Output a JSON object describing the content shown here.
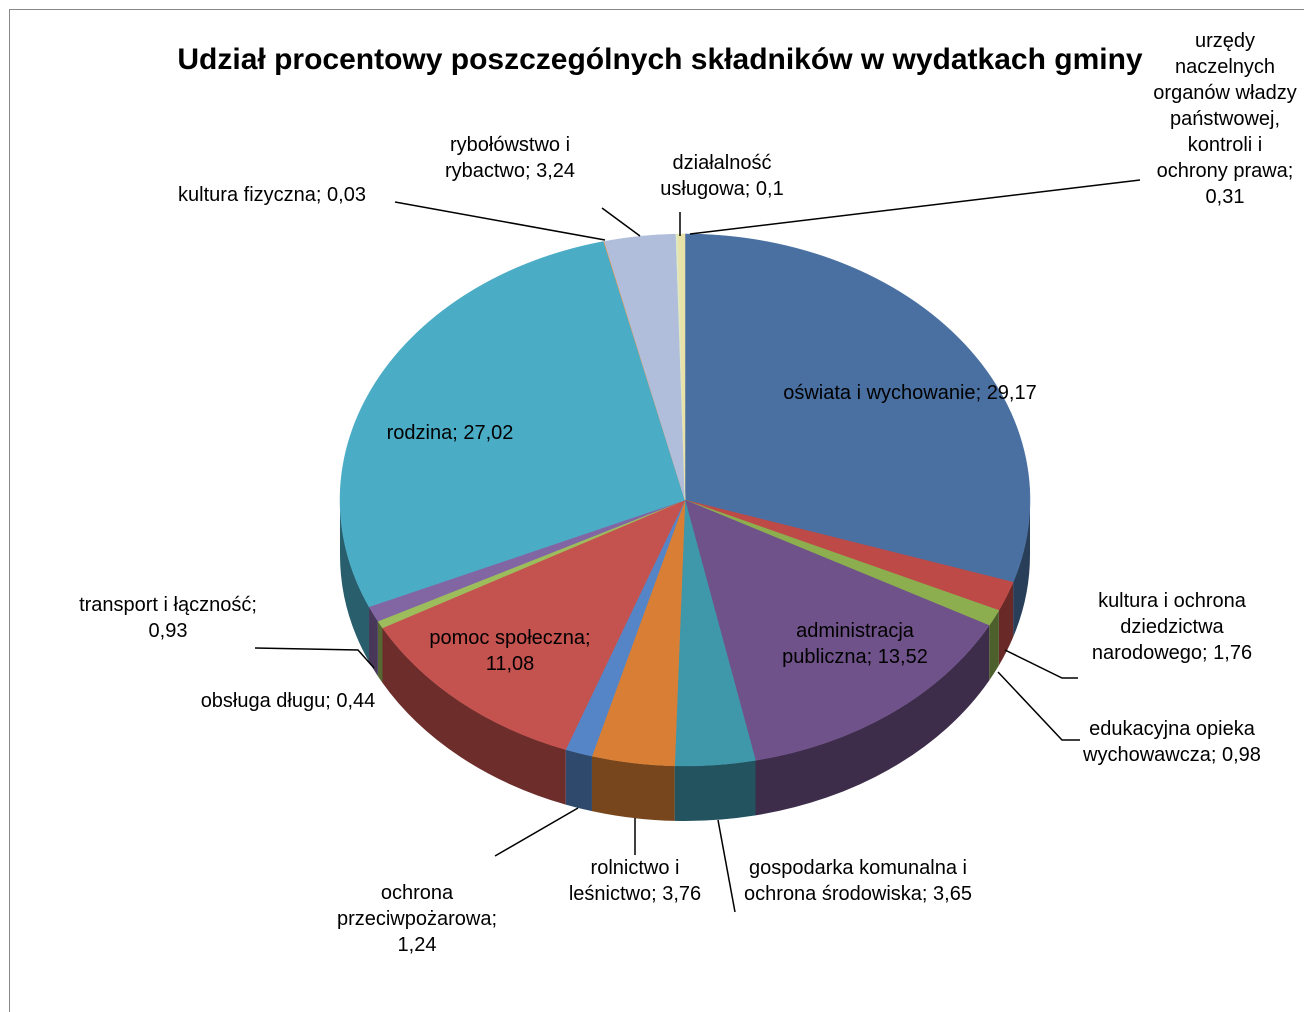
{
  "chart_data": {
    "type": "pie3d",
    "title": "Udział procentowy poszczególnych składników w wydatkach gminy",
    "label_separator": "; ",
    "categories": [
      "oświata i wychowanie",
      "kultura i ochrona dziedzictwa narodowego",
      "edukacyjna opieka wychowawcza",
      "administracja publiczna",
      "gospodarka komunalna i ochrona środowiska",
      "rolnictwo i leśnictwo",
      "ochrona przeciwpożarowa",
      "pomoc społeczna",
      "obsługa długu",
      "transport i łączność",
      "rodzina",
      "kultura fizyczna",
      "rybołówstwo i rybactwo",
      "działalność usługowa",
      "urzędy naczelnych organów władzy państwowej, kontroli i ochrony prawa"
    ],
    "values": [
      29.17,
      1.76,
      0.98,
      13.52,
      3.65,
      3.76,
      1.24,
      11.08,
      0.44,
      0.93,
      27.02,
      0.03,
      3.24,
      0.1,
      0.31
    ],
    "value_labels": [
      "29,17",
      "1,76",
      "0,98",
      "13,52",
      "3,65",
      "3,76",
      "1,24",
      "11,08",
      "0,44",
      "0,93",
      "27,02",
      "0,03",
      "3,24",
      "0,1",
      "0,31"
    ],
    "colors": [
      "#4a70a2",
      "#bd4a47",
      "#8cae4f",
      "#6f5289",
      "#3f97aa",
      "#d97f35",
      "#5585c6",
      "#c4524f",
      "#9dbd5c",
      "#8166a3",
      "#4bacc6",
      "#f79646",
      "#b0bedb",
      "#dfe8c2",
      "#e8e2a8"
    ]
  }
}
